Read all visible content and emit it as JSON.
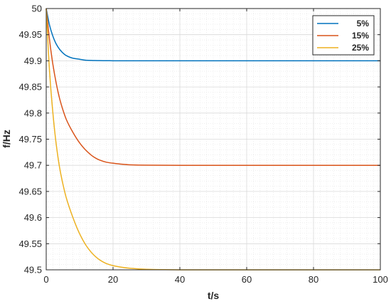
{
  "chart_data": {
    "type": "line",
    "title": "",
    "xlabel": "t/s",
    "ylabel": "f/Hz",
    "xlim": [
      0,
      100
    ],
    "ylim": [
      49.5,
      50
    ],
    "xticks": [
      "0",
      "20",
      "40",
      "60",
      "80",
      "100"
    ],
    "yticks": [
      "49.5",
      "49.55",
      "49.6",
      "49.65",
      "49.7",
      "49.75",
      "49.8",
      "49.85",
      "49.9",
      "49.95",
      "50"
    ],
    "grid": true,
    "legend_position": "top-right",
    "series": [
      {
        "name": "5%",
        "color": "#0072BD",
        "x": [
          0,
          1,
          2,
          3,
          4,
          5,
          6,
          8,
          10,
          12,
          14,
          16,
          18,
          20,
          25,
          30,
          40,
          50,
          60,
          70,
          80,
          90,
          100
        ],
        "y": [
          50.0,
          49.968,
          49.947,
          49.932,
          49.922,
          49.915,
          49.91,
          49.905,
          49.903,
          49.901,
          49.9006,
          49.9003,
          49.9002,
          49.9001,
          49.9,
          49.9,
          49.9,
          49.9,
          49.9,
          49.9,
          49.9,
          49.9,
          49.9
        ]
      },
      {
        "name": "15%",
        "color": "#D95319",
        "x": [
          0,
          1,
          2,
          3,
          4,
          5,
          6,
          8,
          10,
          12,
          14,
          16,
          18,
          20,
          25,
          30,
          40,
          50,
          60,
          70,
          80,
          90,
          100
        ],
        "y": [
          50.0,
          49.94,
          49.893,
          49.857,
          49.828,
          49.806,
          49.788,
          49.763,
          49.743,
          49.728,
          49.717,
          49.71,
          49.706,
          49.704,
          49.701,
          49.7003,
          49.7,
          49.7,
          49.7,
          49.7,
          49.7,
          49.7,
          49.7
        ]
      },
      {
        "name": "25%",
        "color": "#EDB120",
        "x": [
          0,
          1,
          2,
          3,
          4,
          5,
          6,
          8,
          10,
          12,
          14,
          16,
          18,
          20,
          25,
          30,
          40,
          50,
          60,
          70,
          80,
          90,
          100
        ],
        "y": [
          50.0,
          49.88,
          49.8,
          49.74,
          49.696,
          49.664,
          49.638,
          49.6,
          49.569,
          49.546,
          49.53,
          49.519,
          49.512,
          49.508,
          49.503,
          49.501,
          49.5,
          49.5,
          49.5,
          49.5,
          49.5,
          49.5,
          49.5
        ]
      }
    ]
  }
}
